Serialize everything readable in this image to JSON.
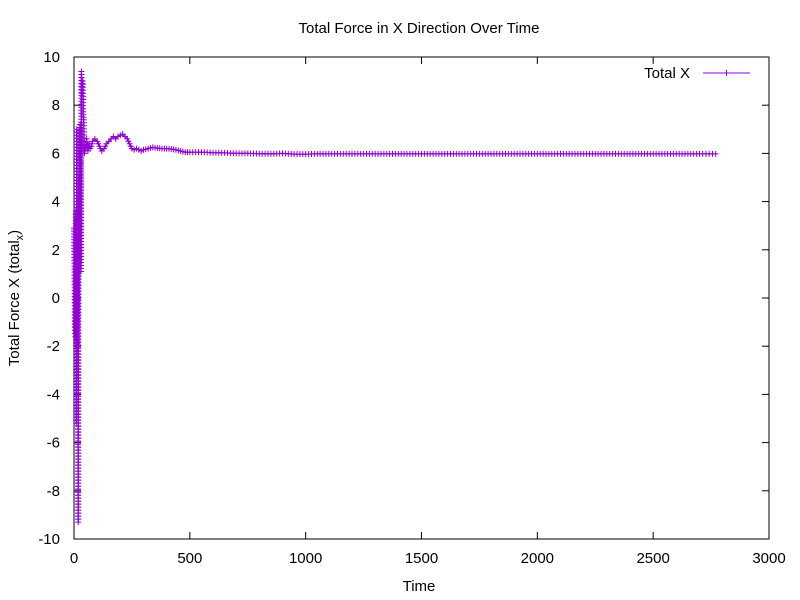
{
  "chart_data": {
    "type": "line",
    "title": "Total Force in X Direction Over Time",
    "xlabel": "Time",
    "ylabel_main": "Total Force X (total",
    "ylabel_sub": "x",
    "ylabel_close": ")",
    "xlim": [
      0,
      3000
    ],
    "ylim": [
      -10,
      10
    ],
    "xticks": [
      0,
      500,
      1000,
      1500,
      2000,
      2500,
      3000
    ],
    "yticks": [
      -10,
      -8,
      -6,
      -4,
      -2,
      0,
      2,
      4,
      6,
      8,
      10
    ],
    "grid": false,
    "legend_position": "top-right",
    "series": [
      {
        "name": "Total X",
        "color": "#9400d3",
        "marker": "plus",
        "points": [
          [
            0,
            2.9
          ],
          [
            2,
            1.2
          ],
          [
            4,
            -1.2
          ],
          [
            6,
            -1.6
          ],
          [
            8,
            3.6
          ],
          [
            10,
            -5.2
          ],
          [
            12,
            7.0
          ],
          [
            14,
            -2.0
          ],
          [
            16,
            3.3
          ],
          [
            18,
            -9.3
          ],
          [
            20,
            5.0
          ],
          [
            22,
            1.3
          ],
          [
            24,
            4.7
          ],
          [
            26,
            7.2
          ],
          [
            28,
            5.5
          ],
          [
            30,
            1.1
          ],
          [
            32,
            9.4
          ],
          [
            34,
            8.5
          ],
          [
            36,
            8.9
          ],
          [
            38,
            9.0
          ],
          [
            40,
            7.6
          ],
          [
            42,
            7.4
          ],
          [
            45,
            6.0
          ],
          [
            50,
            6.2
          ],
          [
            55,
            6.6
          ],
          [
            60,
            6.1
          ],
          [
            65,
            6.4
          ],
          [
            70,
            6.2
          ],
          [
            75,
            6.3
          ],
          [
            80,
            6.5
          ],
          [
            90,
            6.6
          ],
          [
            100,
            6.5
          ],
          [
            110,
            6.3
          ],
          [
            120,
            6.1
          ],
          [
            130,
            6.2
          ],
          [
            140,
            6.4
          ],
          [
            150,
            6.5
          ],
          [
            160,
            6.6
          ],
          [
            170,
            6.7
          ],
          [
            180,
            6.6
          ],
          [
            190,
            6.7
          ],
          [
            200,
            6.75
          ],
          [
            210,
            6.8
          ],
          [
            220,
            6.7
          ],
          [
            230,
            6.6
          ],
          [
            240,
            6.4
          ],
          [
            250,
            6.2
          ],
          [
            260,
            6.15
          ],
          [
            270,
            6.2
          ],
          [
            280,
            6.15
          ],
          [
            290,
            6.1
          ],
          [
            300,
            6.15
          ],
          [
            320,
            6.2
          ],
          [
            340,
            6.25
          ],
          [
            360,
            6.22
          ],
          [
            380,
            6.2
          ],
          [
            400,
            6.2
          ],
          [
            420,
            6.18
          ],
          [
            440,
            6.15
          ],
          [
            460,
            6.1
          ],
          [
            480,
            6.05
          ],
          [
            500,
            6.05
          ],
          [
            550,
            6.05
          ],
          [
            600,
            6.03
          ],
          [
            650,
            6.02
          ],
          [
            700,
            6.0
          ],
          [
            750,
            6.0
          ],
          [
            800,
            5.99
          ],
          [
            850,
            5.98
          ],
          [
            900,
            6.0
          ],
          [
            950,
            5.97
          ],
          [
            1000,
            5.97
          ],
          [
            1050,
            5.98
          ],
          [
            1100,
            5.98
          ],
          [
            1200,
            5.98
          ],
          [
            1300,
            5.98
          ],
          [
            1400,
            5.98
          ],
          [
            1500,
            5.98
          ],
          [
            1600,
            5.98
          ],
          [
            1700,
            5.98
          ],
          [
            1800,
            5.98
          ],
          [
            1900,
            5.98
          ],
          [
            2000,
            5.98
          ],
          [
            2100,
            5.98
          ],
          [
            2200,
            5.98
          ],
          [
            2300,
            5.98
          ],
          [
            2400,
            5.98
          ],
          [
            2500,
            5.98
          ],
          [
            2600,
            5.98
          ],
          [
            2700,
            5.98
          ],
          [
            2770,
            5.98
          ]
        ]
      }
    ]
  }
}
